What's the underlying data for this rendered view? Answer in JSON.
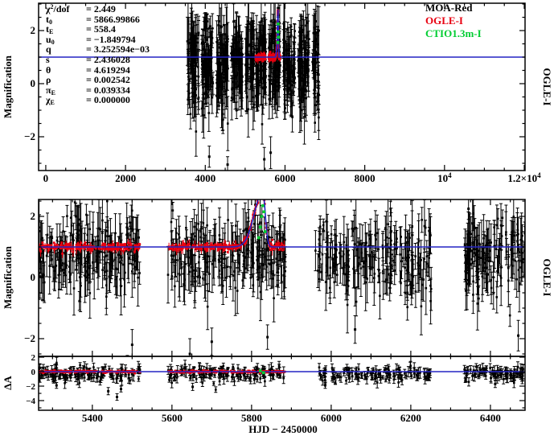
{
  "figure": {
    "background": "#ffffff",
    "xlabel": "HJD − 2450000",
    "colors": {
      "axis": "#000000",
      "moa": "#000000",
      "ogle": "#e80010",
      "ctio": "#00cd32",
      "model": "#2424c4"
    },
    "legend": {
      "items": [
        {
          "label": "MOA-Red",
          "color_key": "moa"
        },
        {
          "label": "OGLE-I",
          "color_key": "ogle"
        },
        {
          "label": "CTIO1.3m-I",
          "color_key": "ctio"
        }
      ]
    },
    "fit_parameters": [
      {
        "sym": "χ",
        "sup": "2",
        "sub": "",
        "suffix": "/dof",
        "value": "2.449"
      },
      {
        "sym": "t",
        "sup": "",
        "sub": "0",
        "suffix": "",
        "value": "5866.99866"
      },
      {
        "sym": "t",
        "sup": "",
        "sub": "E",
        "suffix": "",
        "value": "558.4"
      },
      {
        "sym": "u",
        "sup": "",
        "sub": "0",
        "suffix": "",
        "value": "−1.849794"
      },
      {
        "sym": "q",
        "sup": "",
        "sub": "",
        "suffix": "",
        "value": "3.252594e−03"
      },
      {
        "sym": "s",
        "sup": "",
        "sub": "",
        "suffix": "",
        "value": "2.436028"
      },
      {
        "sym": "θ",
        "sup": "",
        "sub": "",
        "suffix": "",
        "value": "4.619294"
      },
      {
        "sym": "ρ",
        "sup": "",
        "sub": "",
        "suffix": "",
        "value": "0.002542"
      },
      {
        "sym": "π",
        "sup": "",
        "sub": "E",
        "suffix": "",
        "value": "0.039334"
      },
      {
        "sym": "χ",
        "sup": "",
        "sub": "E",
        "suffix": "",
        "value": "0.000000"
      }
    ]
  },
  "chart_data": [
    {
      "id": "top-panel",
      "type": "scatter",
      "ylabel": "Magnification",
      "right_label": "OGLE-I",
      "xlim": [
        -180,
        12020
      ],
      "ylim": [
        -3.27,
        3.03
      ],
      "xticks": {
        "major": [
          {
            "v": 0,
            "label": "0"
          },
          {
            "v": 2000,
            "label": "2000"
          },
          {
            "v": 4000,
            "label": "4000"
          },
          {
            "v": 6000,
            "label": "6000"
          },
          {
            "v": 8000,
            "label": "8000"
          },
          {
            "v": 10000,
            "label": "10",
            "sup": "4"
          },
          {
            "v": 12000,
            "label": "1.2×10",
            "sup": "4"
          }
        ],
        "minor_step": 500,
        "show_labels": true
      },
      "yticks": {
        "major": [
          {
            "v": 2,
            "label": "2"
          },
          {
            "v": 0,
            "label": "0"
          },
          {
            "v": -2,
            "label": "−2"
          }
        ],
        "minor_step": 0.5
      },
      "model": {
        "baseline": 1.0,
        "peak": {
          "t0": 5828,
          "amplitude": 1.8,
          "width_left": 30,
          "width_right": 9
        }
      },
      "series": [
        {
          "name": "MOA-Red",
          "color_key": "moa",
          "kind": "errorbar",
          "seed": 11,
          "seasons": [
            [
              3550,
              3840,
              70
            ],
            [
              3915,
              4205,
              70
            ],
            [
              4280,
              4570,
              70
            ],
            [
              4645,
              4935,
              70
            ],
            [
              5010,
              5230,
              60
            ],
            [
              5265,
              5520,
              65
            ],
            [
              5590,
              5885,
              75
            ],
            [
              5955,
              6245,
              70
            ],
            [
              6320,
              6610,
              70
            ],
            [
              6685,
              6860,
              45
            ]
          ],
          "y_center": 0.72,
          "y_sigma": 0.85,
          "y_clamp": [
            -2.7,
            2.35
          ],
          "ebar": [
            0.25,
            1.05
          ]
        },
        {
          "name": "OGLE-I",
          "color_key": "ogle",
          "kind": "dense",
          "seed": 21,
          "seasons": [
            [
              5265,
              5520,
              110
            ],
            [
              5590,
              5885,
              160
            ]
          ],
          "follow_model": true,
          "y_jitter": 0.05,
          "ebar_frac": 0.3,
          "ebar": [
            0.06,
            0.18
          ]
        },
        {
          "name": "CTIO1.3m-I",
          "color_key": "ctio",
          "kind": "dots",
          "points": [
            [
              5820,
              1.55
            ],
            [
              5826,
              1.95
            ],
            [
              5829,
              2.25
            ],
            [
              5832,
              1.75
            ]
          ]
        }
      ],
      "outliers": [
        [
          4560,
          -3.05,
          0.3
        ],
        [
          4100,
          -2.75,
          0.4
        ],
        [
          5480,
          -2.85,
          0.45
        ],
        [
          5640,
          -2.6,
          0.6
        ],
        [
          5830,
          2.85,
          0.3
        ],
        [
          5826,
          2.6,
          0.25
        ]
      ]
    },
    {
      "id": "middle-panel",
      "type": "scatter",
      "ylabel": "Magnification",
      "right_label": "OGLE-I",
      "xlim": [
        5265,
        6487
      ],
      "ylim": [
        -2.58,
        2.55
      ],
      "xticks": {
        "major": [
          {
            "v": 5400,
            "label": "5400"
          },
          {
            "v": 5600,
            "label": "5600"
          },
          {
            "v": 5800,
            "label": "5800"
          },
          {
            "v": 6000,
            "label": "6000"
          },
          {
            "v": 6200,
            "label": "6200"
          },
          {
            "v": 6400,
            "label": "6400"
          }
        ],
        "minor_step": 50,
        "show_labels": false
      },
      "yticks": {
        "major": [
          {
            "v": 2,
            "label": "2"
          },
          {
            "v": 0,
            "label": "0"
          },
          {
            "v": -2,
            "label": "−2"
          }
        ],
        "minor_step": 0.5
      },
      "model": {
        "baseline": 1.0,
        "peak": {
          "t0": 5828,
          "amplitude": 1.8,
          "width_left": 30,
          "width_right": 9
        }
      },
      "series": [
        {
          "name": "MOA-Red",
          "color_key": "moa",
          "kind": "errorbar",
          "seed": 31,
          "seasons": [
            [
              5265,
              5520,
              200
            ],
            [
              5590,
              5885,
              215
            ],
            [
              5960,
              6255,
              195
            ],
            [
              6330,
              6487,
              135
            ]
          ],
          "y_center": 0.72,
          "y_sigma": 0.62,
          "y_clamp": [
            -2.55,
            2.5
          ],
          "ebar": [
            0.2,
            0.95
          ]
        },
        {
          "name": "OGLE-I",
          "color_key": "ogle",
          "kind": "dense",
          "seed": 41,
          "seasons": [
            [
              5265,
              5520,
              200
            ],
            [
              5590,
              5885,
              230
            ]
          ],
          "follow_model": true,
          "y_jitter": 0.06,
          "ebar_frac": 0.3,
          "ebar": [
            0.07,
            0.2
          ]
        },
        {
          "name": "CTIO1.3m-I",
          "color_key": "ctio",
          "kind": "dots",
          "points": [
            [
              5818,
              1.3
            ],
            [
              5822,
              1.65
            ],
            [
              5825,
              2.0
            ],
            [
              5828,
              2.35
            ],
            [
              5831,
              2.15
            ],
            [
              5834,
              1.5
            ]
          ]
        }
      ],
      "outliers": [
        [
          5488,
          -2.9,
          0.35
        ],
        [
          5500,
          -2.2,
          0.5
        ],
        [
          5645,
          -2.5,
          0.5
        ],
        [
          5700,
          -2.1,
          0.45
        ],
        [
          5840,
          -1.95,
          0.4
        ],
        [
          6060,
          -1.7,
          0.45
        ],
        [
          6345,
          2.25,
          0.35
        ],
        [
          6470,
          -1.9,
          0.5
        ]
      ]
    },
    {
      "id": "residual-panel",
      "type": "scatter",
      "ylabel": "ΔA",
      "right_label": "",
      "xlim": [
        5265,
        6487
      ],
      "ylim": [
        -5.33,
        2.11
      ],
      "xticks": {
        "major": [
          {
            "v": 5400,
            "label": "5400"
          },
          {
            "v": 5600,
            "label": "5600"
          },
          {
            "v": 5800,
            "label": "5800"
          },
          {
            "v": 6000,
            "label": "6000"
          },
          {
            "v": 6200,
            "label": "6200"
          },
          {
            "v": 6400,
            "label": "6400"
          }
        ],
        "minor_step": 50,
        "show_labels": true
      },
      "yticks": {
        "major": [
          {
            "v": 2,
            "label": "2"
          },
          {
            "v": 0,
            "label": "0"
          },
          {
            "v": -2,
            "label": "−2"
          },
          {
            "v": -4,
            "label": "−4"
          }
        ],
        "minor_step": 1
      },
      "model": {
        "baseline": 0.0,
        "peak": null
      },
      "series": [
        {
          "name": "MOA-Red",
          "color_key": "moa",
          "kind": "errorbar",
          "seed": 51,
          "seasons": [
            [
              5265,
              5520,
              130
            ],
            [
              5590,
              5885,
              140
            ],
            [
              5960,
              6255,
              120
            ],
            [
              6330,
              6487,
              85
            ]
          ],
          "y_center": -0.3,
          "y_sigma": 0.5,
          "y_clamp": [
            -3.8,
            1.6
          ],
          "ebar": [
            0.25,
            0.8
          ]
        },
        {
          "name": "OGLE-I",
          "color_key": "ogle",
          "kind": "dense",
          "seed": 61,
          "seasons": [
            [
              5265,
              5520,
              150
            ],
            [
              5590,
              5885,
              160
            ]
          ],
          "follow_model": true,
          "y_jitter": 0.07,
          "ebar_frac": 0.25,
          "ebar": [
            0.06,
            0.18
          ]
        },
        {
          "name": "CTIO1.3m-I",
          "color_key": "ctio",
          "kind": "dots",
          "points": [
            [
              5822,
              0.1
            ],
            [
              5830,
              -0.15
            ]
          ]
        }
      ],
      "outliers": [
        [
          5310,
          -1.9,
          0.4
        ],
        [
          5440,
          -2.7,
          0.5
        ],
        [
          5462,
          -3.5,
          0.45
        ],
        [
          5472,
          -2.4,
          0.4
        ],
        [
          5652,
          -2.1,
          0.5
        ],
        [
          5985,
          -1.9,
          0.4
        ],
        [
          6412,
          -1.7,
          0.5
        ]
      ]
    }
  ]
}
